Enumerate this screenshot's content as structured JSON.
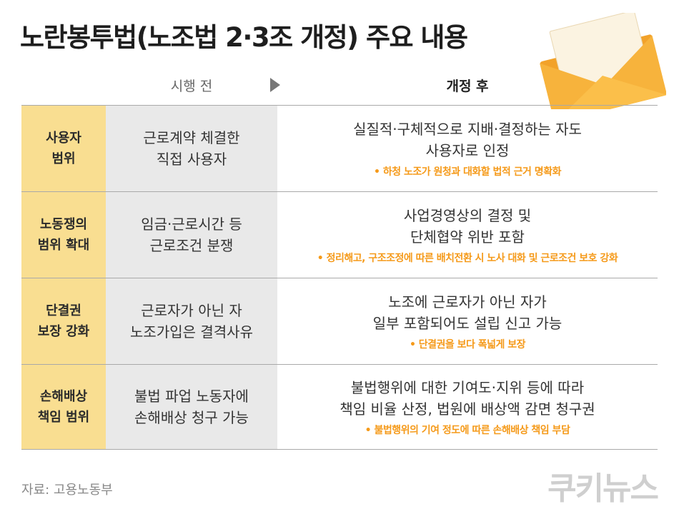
{
  "title": "노란봉투법(노조법 2·3조 개정) 주요 내용",
  "header": {
    "before": "시행 전",
    "after": "개정 후"
  },
  "rows": [
    {
      "category": [
        "사용자",
        "범위"
      ],
      "before": [
        "근로계약 체결한",
        "직접 사용자"
      ],
      "after": [
        "실질적·구체적으로 지배·결정하는 자도",
        "사용자로 인정"
      ],
      "note": "• 하청 노조가 원청과 대화할 법적 근거 명확화"
    },
    {
      "category": [
        "노동쟁의",
        "범위 확대"
      ],
      "before": [
        "임금·근로시간 등",
        "근로조건 분쟁"
      ],
      "after": [
        "사업경영상의 결정 및",
        "단체협약 위반 포함"
      ],
      "note": "• 정리해고, 구조조정에 따른 배치전환 시 노사 대화 및 근로조건 보호 강화"
    },
    {
      "category": [
        "단결권",
        "보장 강화"
      ],
      "before": [
        "근로자가 아닌 자",
        "노조가입은 결격사유"
      ],
      "after": [
        "노조에 근로자가 아닌 자가",
        "일부 포함되어도 설립 신고 가능"
      ],
      "note": "• 단결권을 보다 폭넓게 보장"
    },
    {
      "category": [
        "손해배상",
        "책임 범위"
      ],
      "before": [
        "불법 파업 노동자에",
        "손해배상 청구 가능"
      ],
      "after": [
        "불법행위에 대한 기여도·지위 등에 따라",
        "책임 비율 산정, 법원에 배상액 감면 청구권"
      ],
      "note": "• 불법행위의 기여 정도에 따른 손해배상 책임 부담"
    }
  ],
  "source": "자료: 고용노동부",
  "logo": "쿠키뉴스",
  "colors": {
    "category_bg": "#f9de91",
    "before_bg": "#e9e9e9",
    "note": "#f59a1a",
    "envelope": "#f5a623"
  },
  "icons": [
    "envelope-icon",
    "arrow-right-icon"
  ]
}
